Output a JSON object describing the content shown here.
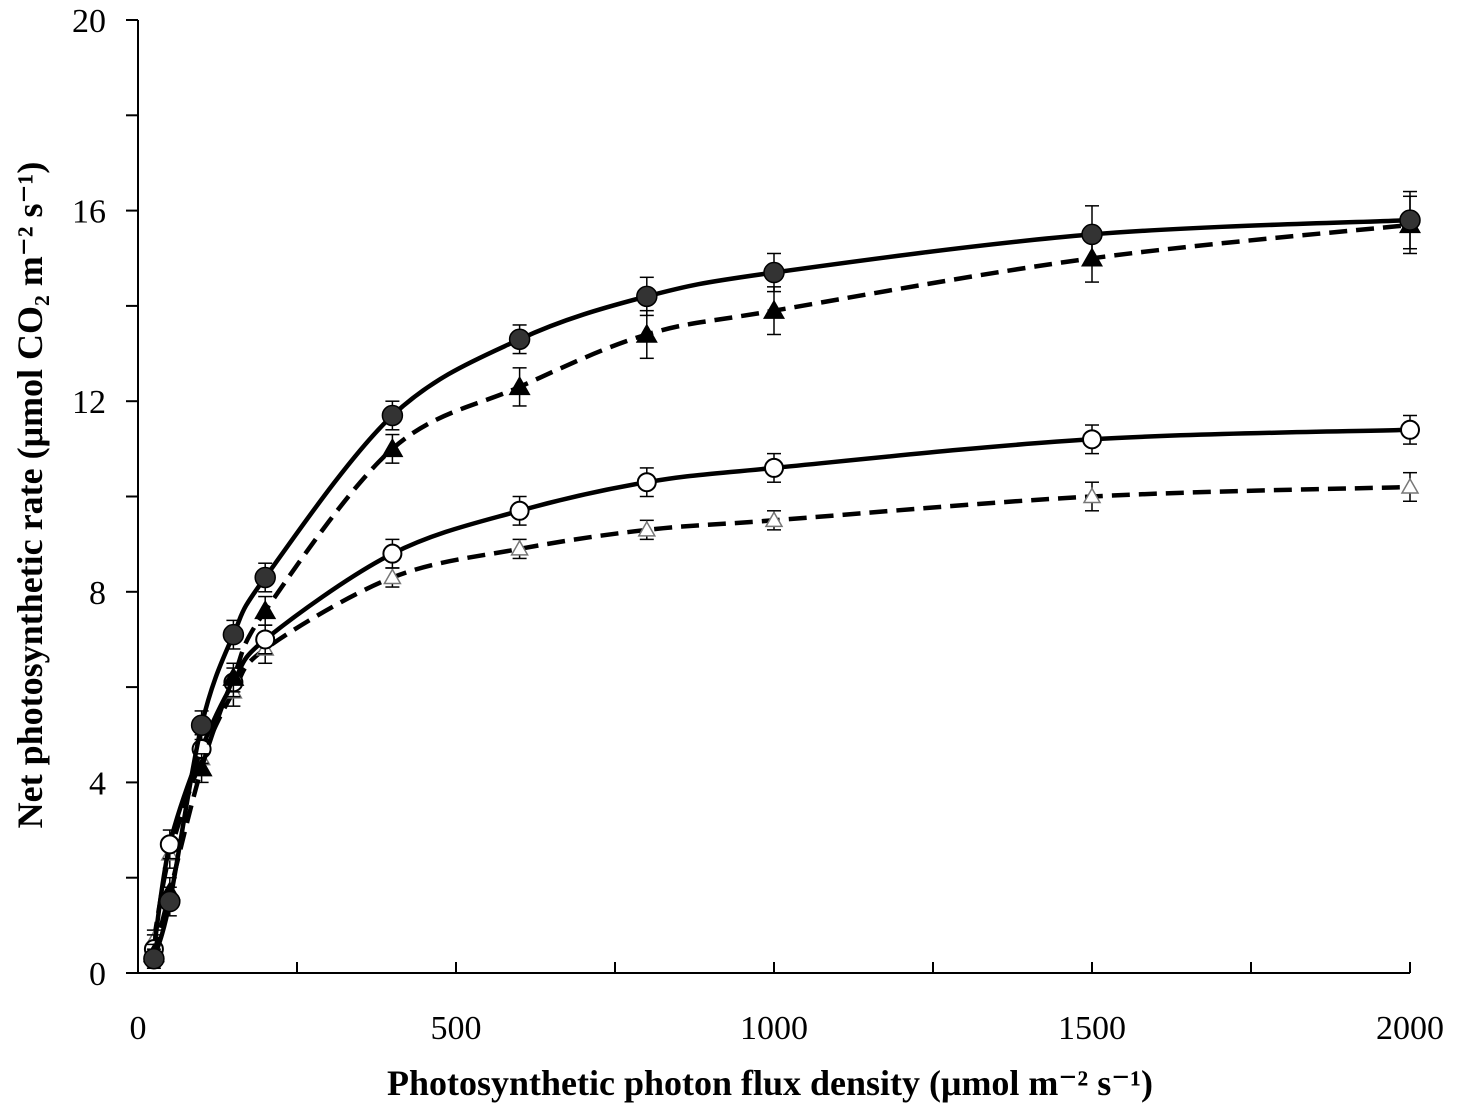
{
  "chart_data": {
    "type": "line",
    "xlabel": "Photosynthetic photon flux density (μmol m⁻² s⁻¹)",
    "ylabel": "Net photosynthetic rate (μmol CO₂ m⁻² s⁻¹)",
    "xlim": [
      0,
      2000
    ],
    "ylim": [
      0,
      20
    ],
    "x_ticks": [
      "0",
      "500",
      "1000",
      "1500",
      "2000"
    ],
    "y_ticks": [
      "0",
      "4",
      "8",
      "12",
      "16",
      "20"
    ],
    "grid": false,
    "x": [
      25,
      50,
      100,
      150,
      200,
      400,
      600,
      800,
      1000,
      1500,
      2000
    ],
    "series": [
      {
        "marker": "filled-circle",
        "line": "solid",
        "values": [
          0.3,
          1.5,
          5.2,
          7.1,
          8.3,
          11.7,
          13.3,
          14.2,
          14.7,
          15.5,
          15.8
        ],
        "errors": [
          0.2,
          0.3,
          0.3,
          0.3,
          0.3,
          0.3,
          0.3,
          0.4,
          0.4,
          0.6,
          0.6
        ]
      },
      {
        "marker": "filled-triangle",
        "line": "dashed",
        "values": [
          0.4,
          1.7,
          4.3,
          6.2,
          7.6,
          11.0,
          12.3,
          13.4,
          13.9,
          15.0,
          15.7
        ],
        "errors": [
          0.2,
          0.3,
          0.3,
          0.3,
          0.3,
          0.3,
          0.4,
          0.5,
          0.5,
          0.5,
          0.6
        ]
      },
      {
        "marker": "open-circle",
        "line": "solid",
        "values": [
          0.5,
          2.7,
          4.7,
          6.1,
          7.0,
          8.8,
          9.7,
          10.3,
          10.6,
          11.2,
          11.4
        ],
        "errors": [
          0.3,
          0.3,
          0.3,
          0.3,
          0.3,
          0.3,
          0.3,
          0.3,
          0.3,
          0.3,
          0.3
        ]
      },
      {
        "marker": "open-triangle",
        "line": "dashed",
        "values": [
          0.7,
          2.5,
          4.5,
          5.9,
          6.8,
          8.3,
          8.9,
          9.3,
          9.5,
          10.0,
          10.2
        ],
        "errors": [
          0.2,
          0.3,
          0.3,
          0.3,
          0.3,
          0.2,
          0.2,
          0.2,
          0.2,
          0.3,
          0.3
        ]
      }
    ]
  }
}
